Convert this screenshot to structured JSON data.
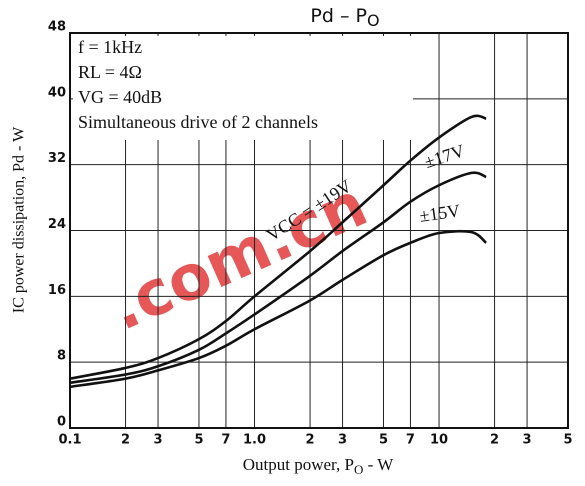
{
  "chart_data": {
    "type": "line",
    "title": "Pd  –  P",
    "title_sub": "O",
    "x_label": "Output power, P",
    "x_label_sub": "O",
    "x_label_suffix": " - W",
    "y_label": "IC power dissipation, Pd - W",
    "log_x": true,
    "grid": true,
    "xlim": [
      0.1,
      50
    ],
    "ylim": [
      0,
      48
    ],
    "xticks": [
      0.1,
      {
        "value": 0.2,
        "label": "2"
      },
      {
        "value": 0.3,
        "label": "3"
      },
      {
        "value": 0.5,
        "label": "5"
      },
      {
        "value": 0.7,
        "label": "7"
      },
      {
        "value": 1,
        "label": "1.0"
      },
      2,
      3,
      5,
      7,
      10,
      {
        "value": 20,
        "label": "2"
      },
      {
        "value": 30,
        "label": "3"
      },
      {
        "value": 50,
        "label": "5"
      }
    ],
    "yticks": [
      0,
      8,
      16,
      24,
      32,
      40,
      48
    ],
    "annotations": [
      "f = 1kHz",
      "RL = 4Ω",
      "VG = 40dB",
      "Simultaneous drive of 2 channels"
    ],
    "watermark": ".com.cn",
    "x": [
      0.1,
      0.2,
      0.3,
      0.5,
      0.7,
      1,
      2,
      3,
      5,
      7,
      10,
      15,
      18
    ],
    "series": [
      {
        "name": "VCC = ±19V",
        "color": "#111111",
        "values": [
          6.0,
          7.3,
          8.5,
          10.8,
          13.0,
          16.0,
          21.5,
          25.0,
          29.5,
          32.5,
          35.3,
          37.8,
          37.6
        ]
      },
      {
        "name": "±17V",
        "color": "#111111",
        "values": [
          5.5,
          6.5,
          7.5,
          9.5,
          11.5,
          13.8,
          18.5,
          21.5,
          25.0,
          27.5,
          29.5,
          31.0,
          30.5
        ]
      },
      {
        "name": "±15V",
        "color": "#111111",
        "values": [
          5.0,
          6.0,
          7.0,
          8.5,
          10.0,
          12.0,
          15.5,
          18.0,
          21.0,
          22.5,
          23.7,
          23.8,
          22.5
        ]
      }
    ]
  }
}
